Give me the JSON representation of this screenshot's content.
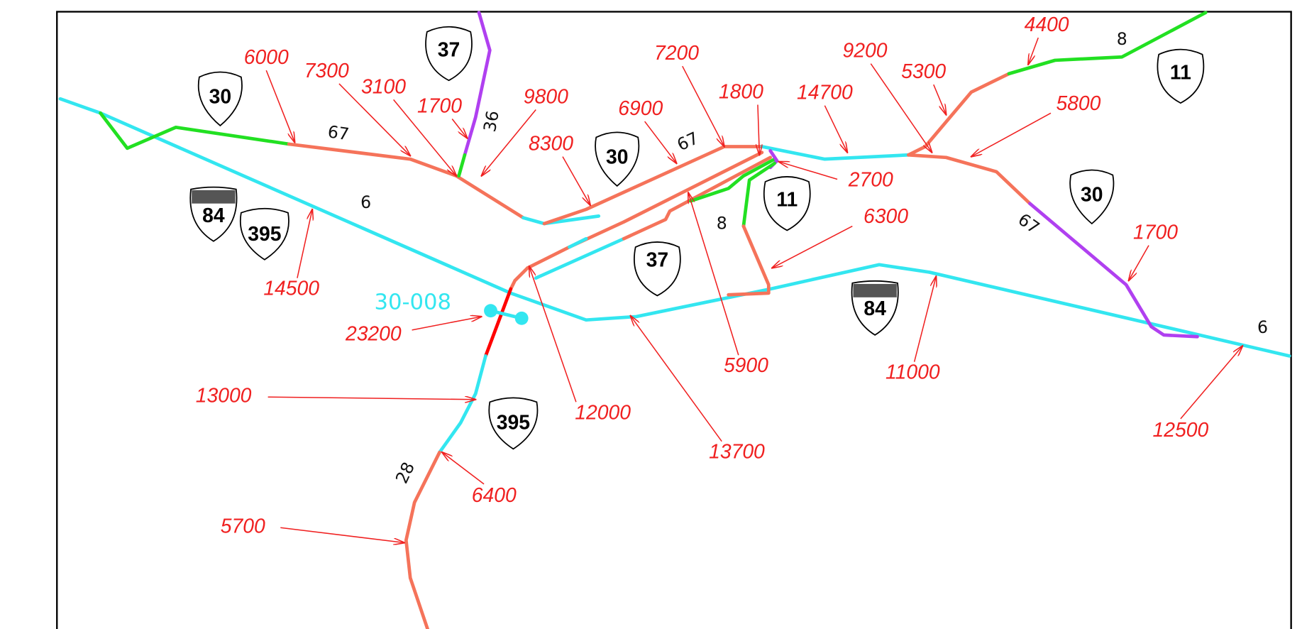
{
  "map": {
    "volumes": [
      6000,
      7300,
      3100,
      1700,
      9800,
      8300,
      6900,
      7200,
      1800,
      14700,
      9200,
      5300,
      4400,
      5800,
      2700,
      6300,
      1700,
      14500,
      23200,
      13000,
      12000,
      13700,
      5900,
      11000,
      12500,
      6400,
      5700
    ],
    "shields": [
      "30",
      "30",
      "30",
      "37",
      "37",
      "11",
      "11",
      "84",
      "84",
      "395",
      "395"
    ],
    "route_labels": [
      "67",
      "36",
      "67",
      "8",
      "8",
      "6",
      "67",
      "6",
      "28"
    ],
    "station": "30-008"
  }
}
